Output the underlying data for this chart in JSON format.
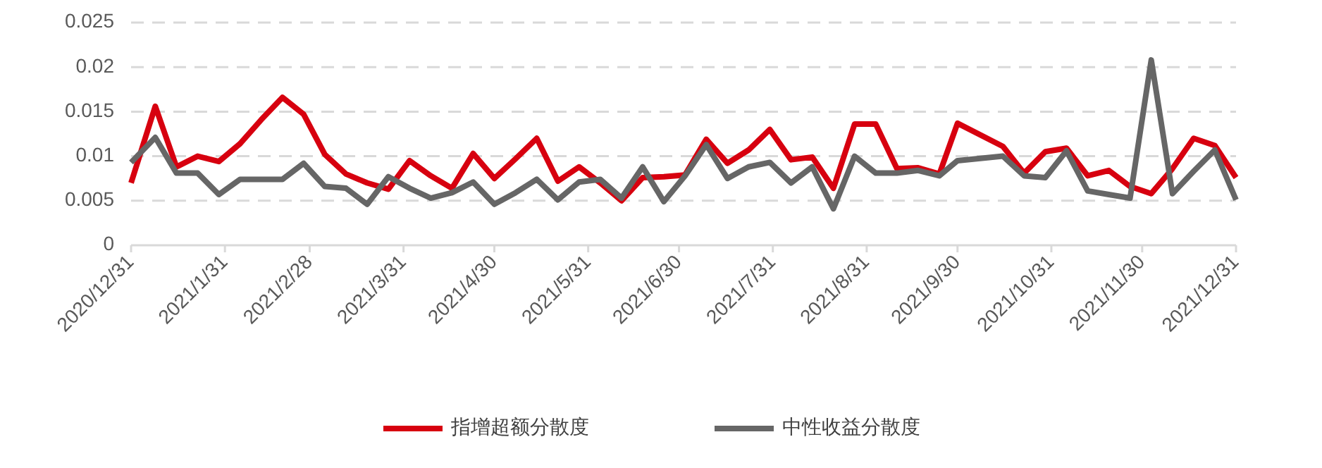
{
  "chart_data": {
    "type": "line",
    "x": [
      "2020-12-31",
      "2021-01-08",
      "2021-01-15",
      "2021-01-22",
      "2021-01-29",
      "2021-02-05",
      "2021-02-12",
      "2021-02-19",
      "2021-02-26",
      "2021-03-05",
      "2021-03-12",
      "2021-03-19",
      "2021-03-26",
      "2021-04-02",
      "2021-04-09",
      "2021-04-16",
      "2021-04-23",
      "2021-04-30",
      "2021-05-07",
      "2021-05-14",
      "2021-05-21",
      "2021-05-28",
      "2021-06-04",
      "2021-06-11",
      "2021-06-18",
      "2021-06-25",
      "2021-07-02",
      "2021-07-09",
      "2021-07-16",
      "2021-07-23",
      "2021-07-30",
      "2021-08-06",
      "2021-08-13",
      "2021-08-20",
      "2021-08-27",
      "2021-09-03",
      "2021-09-10",
      "2021-09-17",
      "2021-09-24",
      "2021-09-30",
      "2021-10-15",
      "2021-10-22",
      "2021-10-29",
      "2021-11-05",
      "2021-11-12",
      "2021-11-19",
      "2021-11-26",
      "2021-12-03",
      "2021-12-10",
      "2021-12-17",
      "2021-12-24",
      "2021-12-31"
    ],
    "series": [
      {
        "name": "指增超额分散度",
        "color": "#d7000f",
        "values": [
          0.007,
          0.0156,
          0.0088,
          0.01,
          0.0094,
          0.0114,
          0.0141,
          0.0166,
          0.0147,
          0.0102,
          0.008,
          0.007,
          0.0063,
          0.0095,
          0.0078,
          0.0064,
          0.0103,
          0.0075,
          0.0097,
          0.012,
          0.0072,
          0.0088,
          0.007,
          0.005,
          0.0076,
          0.0077,
          0.0079,
          0.0119,
          0.0092,
          0.0107,
          0.013,
          0.0096,
          0.0099,
          0.0064,
          0.0136,
          0.0136,
          0.0086,
          0.0087,
          0.008,
          0.0137,
          0.0111,
          0.0081,
          0.0105,
          0.0109,
          0.0078,
          0.0084,
          0.0066,
          0.0058,
          0.0086,
          0.012,
          0.0112,
          0.0076
        ]
      },
      {
        "name": "中性收益分散度",
        "color": "#666666",
        "values": [
          0.0093,
          0.0121,
          0.0081,
          0.0081,
          0.0057,
          0.0074,
          0.0074,
          0.0074,
          0.0092,
          0.0066,
          0.0064,
          0.0046,
          0.0077,
          0.0064,
          0.0053,
          0.0059,
          0.0071,
          0.0046,
          0.0059,
          0.0074,
          0.0051,
          0.0071,
          0.0074,
          0.0053,
          0.0088,
          0.0049,
          0.0078,
          0.0113,
          0.0075,
          0.0088,
          0.0093,
          0.007,
          0.0088,
          0.0041,
          0.01,
          0.0081,
          0.0081,
          0.0084,
          0.0078,
          0.0095,
          0.01,
          0.0078,
          0.0076,
          0.0106,
          0.0061,
          0.0057,
          0.0053,
          0.0208,
          0.0058,
          0.0083,
          0.0107,
          0.0051
        ]
      }
    ],
    "xlim": [
      "2020-12-31",
      "2021-12-31"
    ],
    "xticks": [
      {
        "value": "2020-12-31",
        "label": "2020/12/31"
      },
      {
        "value": "2021-01-31",
        "label": "2021/1/31"
      },
      {
        "value": "2021-02-28",
        "label": "2021/2/28"
      },
      {
        "value": "2021-03-31",
        "label": "2021/3/31"
      },
      {
        "value": "2021-04-30",
        "label": "2021/4/30"
      },
      {
        "value": "2021-05-31",
        "label": "2021/5/31"
      },
      {
        "value": "2021-06-30",
        "label": "2021/6/30"
      },
      {
        "value": "2021-07-31",
        "label": "2021/7/31"
      },
      {
        "value": "2021-08-31",
        "label": "2021/8/31"
      },
      {
        "value": "2021-09-30",
        "label": "2021/9/30"
      },
      {
        "value": "2021-10-31",
        "label": "2021/10/31"
      },
      {
        "value": "2021-11-30",
        "label": "2021/11/30"
      },
      {
        "value": "2021-12-31",
        "label": "2021/12/31"
      }
    ],
    "ylim": [
      0,
      0.025
    ],
    "yticks": [
      0,
      0.005,
      0.01,
      0.015,
      0.02,
      0.025
    ],
    "grid": "y",
    "legend": "bottom",
    "marker": "none",
    "line_style": "solid"
  }
}
